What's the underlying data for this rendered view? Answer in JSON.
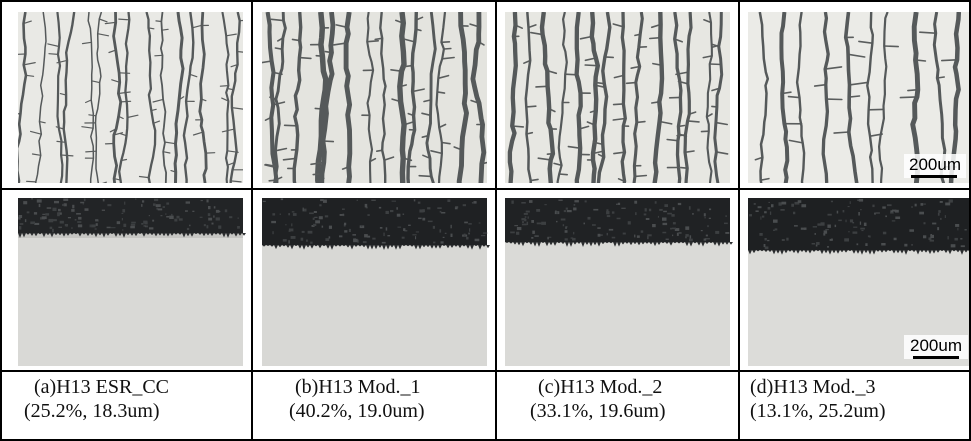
{
  "figure": {
    "scale_bar_label": "200um",
    "panels": [
      {
        "caption_line1": "(a)H13 ESR_CC",
        "caption_line2": "(25.2%, 18.3um)"
      },
      {
        "caption_line1": "(b)H13 Mod._1",
        "caption_line2": "(40.2%, 19.0um)"
      },
      {
        "caption_line1": "(c)H13 Mod._2",
        "caption_line2": "(33.1%, 19.6um)"
      },
      {
        "caption_line1": "(d)H13 Mod._3",
        "caption_line2": "(13.1%, 25.2um)"
      }
    ]
  }
}
